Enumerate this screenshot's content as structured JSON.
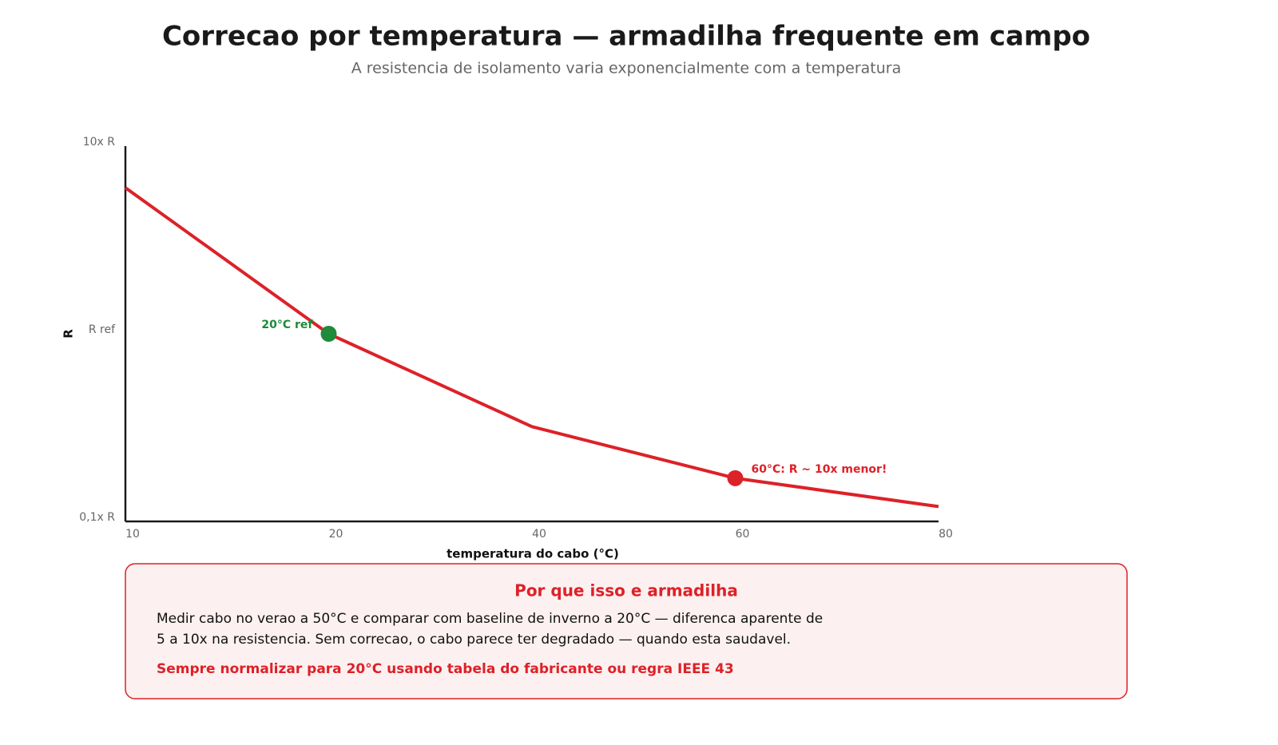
{
  "chart_data": {
    "type": "line",
    "title": "Correcao por temperatura — armadilha frequente em campo",
    "subtitle": "A resistencia de isolamento varia exponencialmente com a temperatura",
    "x_label": "temperatura do cabo (°C)",
    "y_label": "R",
    "categories": [
      "10",
      "20",
      "40",
      "60",
      "80"
    ],
    "series": [
      {
        "color": "#dd2128",
        "values": [
          6,
          1,
          0.32,
          0.17,
          0.12
        ]
      }
    ],
    "log_y": true,
    "ylim": [
      0.1,
      10
    ],
    "yticks": [
      {
        "value": 0.1,
        "label": "0,1x R"
      },
      {
        "value": 1,
        "label": "R ref"
      },
      {
        "value": 10,
        "label": "10x R"
      }
    ],
    "annotations": [
      {
        "x": "20",
        "text": "20°C ref",
        "color": "#1e8a3a"
      },
      {
        "x": "60",
        "text": "60°C: R ~ 10x menor!",
        "color": "#dd2128"
      }
    ]
  },
  "callout": {
    "title": "Por que isso e armadilha",
    "lines": [
      "Medir cabo no verao a 50°C e comparar com baseline de inverno a 20°C — diferenca aparente de",
      "5 a 10x na resistencia. Sem correcao, o cabo parece ter degradado — quando esta saudavel."
    ],
    "note": "Sempre normalizar para 20°C usando tabela do fabricante ou regra IEEE 43"
  }
}
